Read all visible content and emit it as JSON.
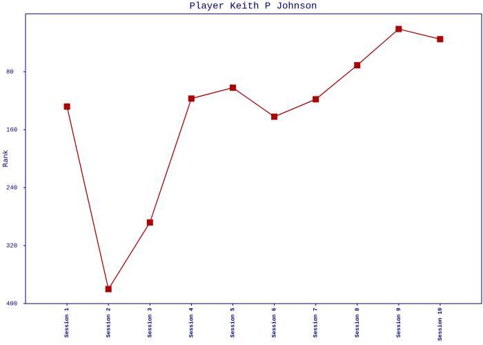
{
  "chart_data": {
    "type": "line",
    "title": "Player Keith P Johnson",
    "y_label": "Rank",
    "categories": [
      "Session 1",
      "Session 2",
      "Session 3",
      "Session 4",
      "Session 5",
      "Session 6",
      "Session 7",
      "Session 8",
      "Session 9",
      "Session 10"
    ],
    "values": [
      128,
      380,
      288,
      117,
      102,
      142,
      118,
      71,
      21,
      35
    ],
    "color": "#b00000",
    "y_inverted": true,
    "ylim": [
      0,
      400
    ],
    "yticks": [
      80,
      160,
      240,
      320,
      400
    ]
  }
}
